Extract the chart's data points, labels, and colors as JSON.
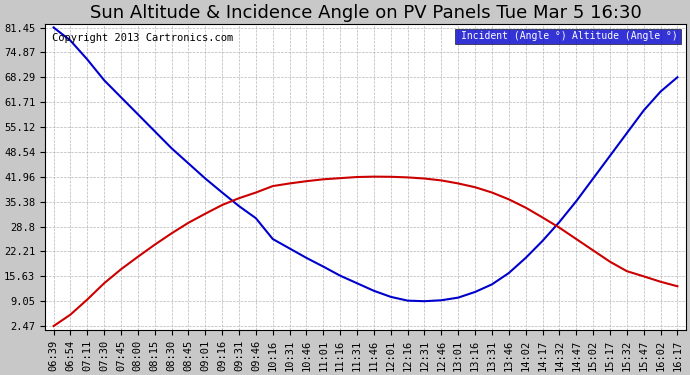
{
  "title": "Sun Altitude & Incidence Angle on PV Panels Tue Mar 5 16:30",
  "copyright": "Copyright 2013 Cartronics.com",
  "legend_altitude": "Altitude (Angle °)",
  "incident_color": "#0000cc",
  "altitude_color": "#cc0000",
  "legend_incident_bg": "#0000cc",
  "legend_altitude_bg": "#cc0000",
  "background_color": "#c8c8c8",
  "plot_bg_color": "#ffffff",
  "grid_color": "#999999",
  "yticks": [
    2.47,
    9.05,
    15.63,
    22.21,
    28.8,
    35.38,
    41.96,
    48.54,
    55.12,
    61.71,
    68.29,
    74.87,
    81.45
  ],
  "ylim": [
    2.47,
    81.45
  ],
  "time_labels": [
    "06:39",
    "06:54",
    "07:11",
    "07:30",
    "07:45",
    "08:00",
    "08:15",
    "08:30",
    "08:45",
    "09:01",
    "09:16",
    "09:31",
    "09:46",
    "10:16",
    "10:31",
    "10:46",
    "11:01",
    "11:16",
    "11:31",
    "11:46",
    "12:01",
    "12:16",
    "12:31",
    "12:46",
    "13:01",
    "13:16",
    "13:31",
    "13:46",
    "14:02",
    "14:17",
    "14:32",
    "14:47",
    "15:02",
    "15:17",
    "15:32",
    "15:47",
    "16:02",
    "16:17"
  ],
  "incident_values": [
    81.45,
    78.0,
    73.0,
    67.5,
    63.0,
    58.5,
    54.0,
    49.5,
    45.5,
    41.5,
    37.8,
    34.2,
    31.0,
    25.5,
    23.0,
    20.5,
    18.2,
    15.8,
    13.8,
    11.8,
    10.2,
    9.2,
    9.05,
    9.3,
    10.0,
    11.5,
    13.5,
    16.5,
    20.5,
    25.0,
    30.0,
    35.5,
    41.5,
    47.5,
    53.5,
    59.5,
    64.5,
    68.29
  ],
  "altitude_values": [
    2.47,
    5.5,
    9.5,
    13.8,
    17.5,
    20.8,
    24.0,
    27.0,
    29.8,
    32.2,
    34.5,
    36.3,
    37.8,
    39.5,
    40.2,
    40.8,
    41.3,
    41.6,
    41.9,
    42.0,
    41.96,
    41.8,
    41.5,
    41.0,
    40.2,
    39.2,
    37.8,
    36.0,
    33.8,
    31.2,
    28.5,
    25.5,
    22.5,
    19.5,
    17.0,
    15.63,
    14.2,
    13.0
  ],
  "title_fontsize": 13,
  "axis_fontsize": 7.5,
  "copyright_fontsize": 7.5,
  "line_width": 1.5
}
